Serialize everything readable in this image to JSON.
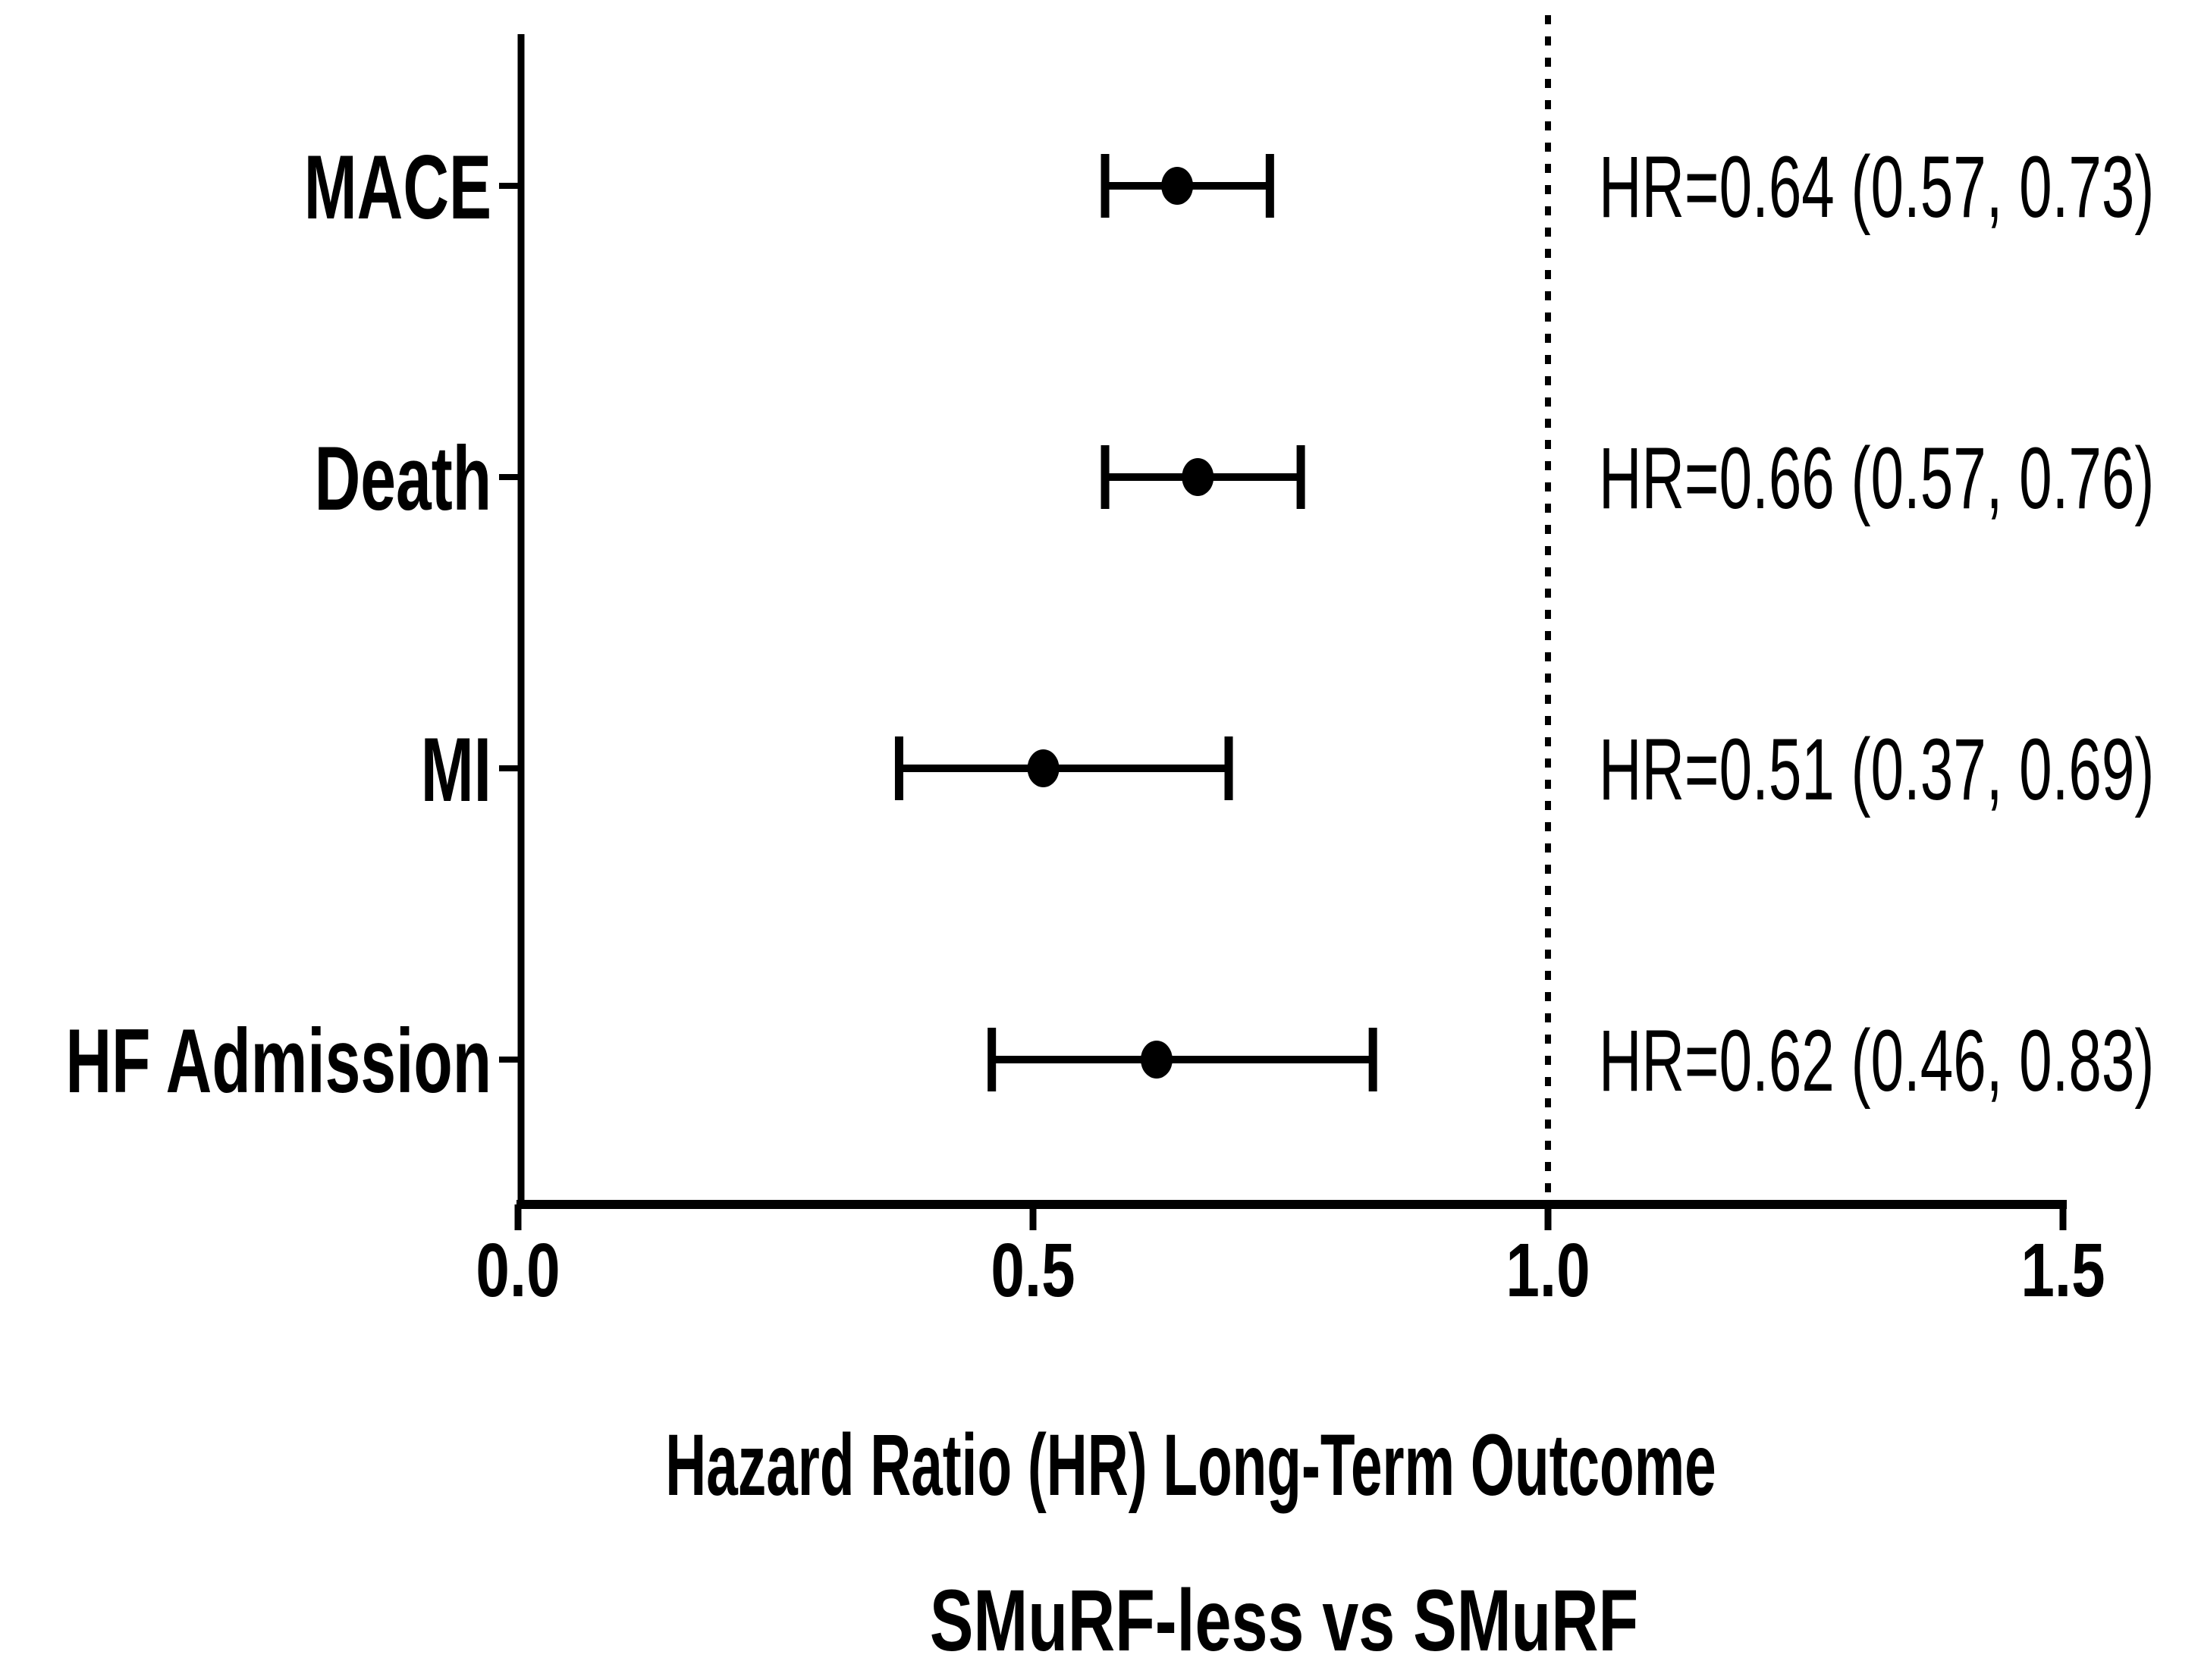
{
  "chart_data": {
    "type": "scatter",
    "subtype": "forest-plot",
    "orientation": "horizontal",
    "title": "",
    "xlabel": "Hazard Ratio (HR) Long-Term Outcome",
    "subtitle": "SMuRF-less vs SMuRF",
    "categories": [
      "MACE",
      "Death",
      "MI",
      "HF Admission"
    ],
    "series": [
      {
        "name": "Hazard Ratio (SMuRF-less vs SMuRF)",
        "hr": [
          0.64,
          0.66,
          0.51,
          0.62
        ],
        "ci_low": [
          0.57,
          0.57,
          0.37,
          0.46
        ],
        "ci_high": [
          0.73,
          0.76,
          0.69,
          0.83
        ]
      }
    ],
    "annotations": [
      "HR=0.64 (0.57, 0.73)",
      "HR=0.66 (0.57, 0.76)",
      "HR=0.51 (0.37, 0.69)",
      "HR=0.62 (0.46, 0.83)"
    ],
    "reference_line": 1.0,
    "reference_line_style": "dotted",
    "xlim": [
      0.0,
      1.5
    ],
    "x_ticks": [
      0.0,
      0.5,
      1.0,
      1.5
    ],
    "x_tick_labels": [
      "0.0",
      "0.5",
      "1.0",
      "1.5"
    ],
    "grid": false,
    "legend": "none",
    "colors": {
      "foreground": "#000000",
      "background": "#ffffff"
    }
  }
}
